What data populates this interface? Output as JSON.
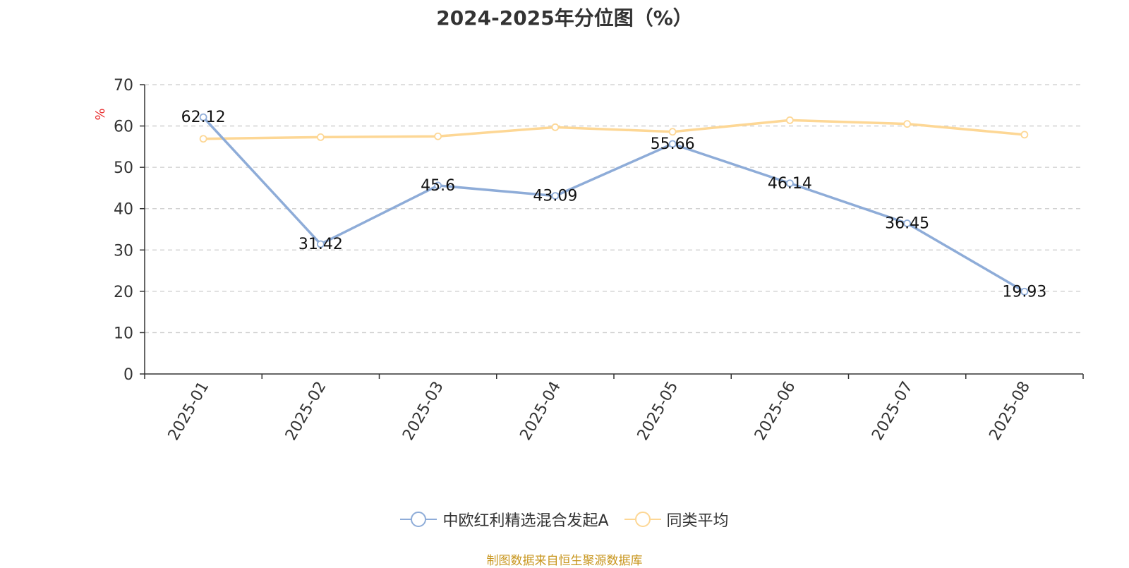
{
  "chart_data": {
    "type": "line",
    "title": "2024-2025年分位图（%）",
    "ylabel": "%",
    "xlabel": "",
    "categories": [
      "2025-01",
      "2025-02",
      "2025-03",
      "2025-04",
      "2025-05",
      "2025-06",
      "2025-07",
      "2025-08"
    ],
    "ylim": [
      0,
      70
    ],
    "yticks": [
      0,
      10,
      20,
      30,
      40,
      50,
      60,
      70
    ],
    "grid": true,
    "legend_position": "bottom",
    "series": [
      {
        "name": "中欧红利精选混合发起A",
        "color": "#8eacd8",
        "values": [
          62.12,
          31.42,
          45.6,
          43.09,
          55.66,
          46.14,
          36.45,
          19.93
        ],
        "labels": [
          "62.12",
          "31.42",
          "45.6",
          "43.09",
          "55.66",
          "46.14",
          "36.45",
          "19.93"
        ]
      },
      {
        "name": "同类平均",
        "color": "#fdd795",
        "values": [
          56.9,
          57.3,
          57.5,
          59.7,
          58.6,
          61.4,
          60.5,
          57.9
        ]
      }
    ]
  },
  "source": "制图数据来自恒生聚源数据库"
}
